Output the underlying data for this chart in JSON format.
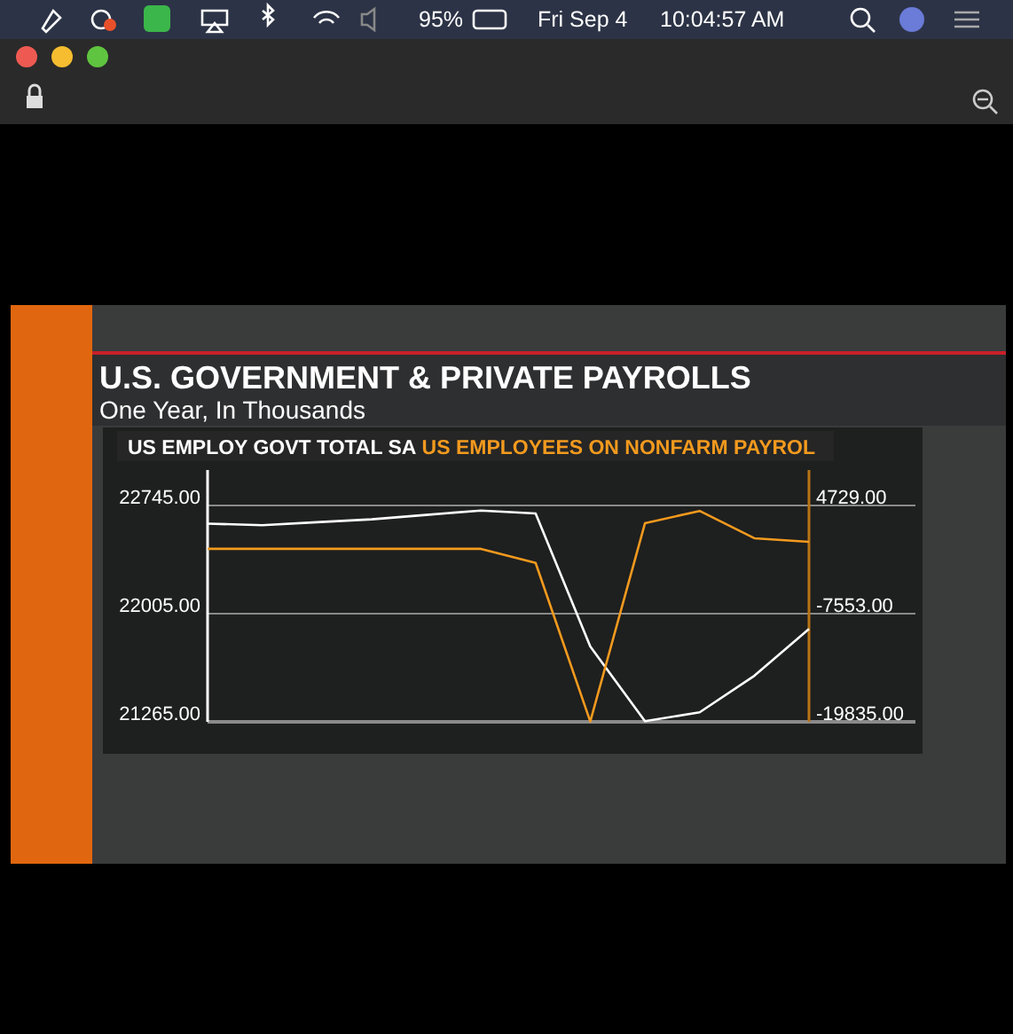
{
  "chart_data": {
    "type": "line",
    "title": "U.S. GOVERNMENT & PRIVATE PAYROLLS",
    "subtitle": "One Year, In Thousands",
    "categories": [
      null,
      null,
      null,
      null,
      null,
      null,
      null,
      null,
      null,
      null,
      null,
      null
    ],
    "series": [
      {
        "name": "US EMPLOY GOVT TOTAL SA",
        "color": "#ffffff",
        "values": [
          22620,
          22610,
          22630,
          22650,
          22680,
          22710,
          22690,
          21780,
          21270,
          21330,
          21580,
          21900
        ]
      },
      {
        "name": "US EMPLOYEES ON NONFARM PAYROL",
        "color": "#f39a1e",
        "axis": "y2",
        "values": [
          -200,
          -200,
          -200,
          -200,
          -200,
          -200,
          -1800,
          -19800,
          2700,
          4100,
          1000,
          600
        ]
      }
    ],
    "ylim": [
      21265,
      22987
    ],
    "yticks": [
      {
        "value": 21265,
        "label": "21265.00"
      },
      {
        "value": 22005,
        "label": "22005.00"
      },
      {
        "value": 22745,
        "label": "22745.00"
      }
    ],
    "y2lim": [
      -19835,
      8745
    ],
    "y2ticks": [
      {
        "value": -19835,
        "label": "-19835.00"
      },
      {
        "value": -7553,
        "label": "-7553.00"
      },
      {
        "value": 4729,
        "label": "4729.00"
      }
    ],
    "grid": "y",
    "legend": "top left",
    "marker": "none",
    "line_style": "solid",
    "tick_labels": "y",
    "annotations": [
      "95%",
      "Fri Sep 4",
      "10:04:57 AM"
    ]
  }
}
